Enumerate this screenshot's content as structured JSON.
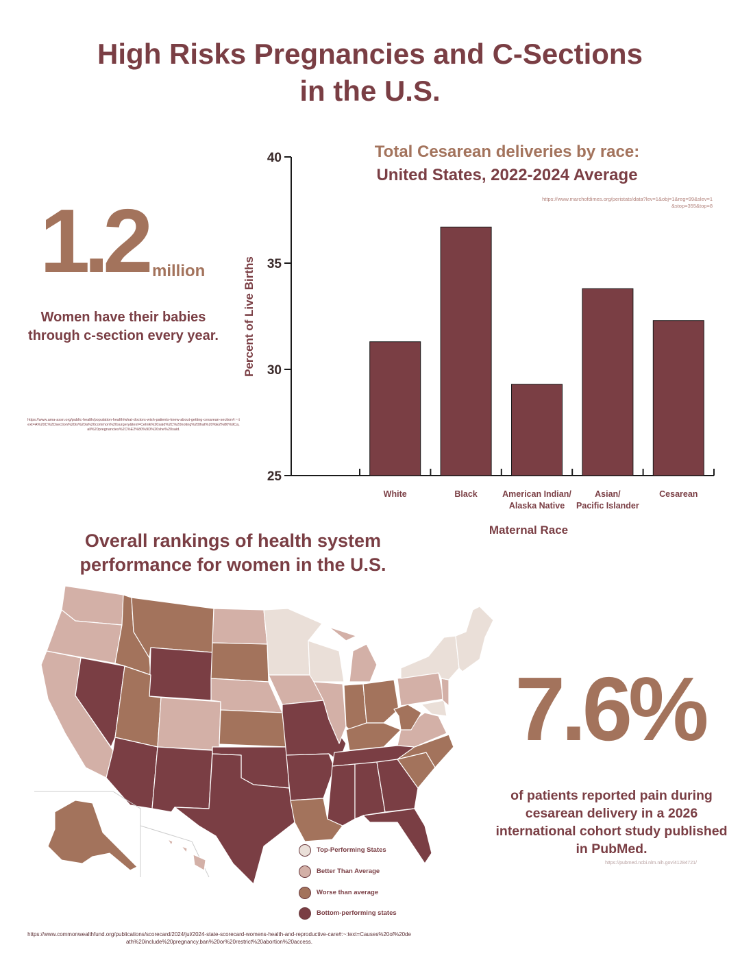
{
  "header": {
    "title_line1": "High Risks Pregnancies and C-Sections",
    "title_line2": "in the U.S."
  },
  "stat1": {
    "number": "1.2",
    "unit": "million",
    "text": "Women have their babies through c-section every year.",
    "source": "https://www.ama-assn.org/public-health/population-health/what-doctors-wish-patients-knew-about-getting-cesarean-section#:~:text=A%20C%2Dsection%20is%20a%20common%20surgery&text=Celnik%20said%2C%20noting%20that%20%E2%80%9Ca,all%20pregnancies%2C%E2%80%9D%20she%20said."
  },
  "chart_data": {
    "type": "bar",
    "title_line1": "Total Cesarean deliveries by race:",
    "title_line2": "United States, 2022-2024 Average",
    "source": "https://www.marchofdimes.org/peristats/data?lev=1&obj=1&reg=99&slev=1&stop=355&top=8",
    "categories": [
      "White",
      "Black",
      "American Indian/ Alaska Native",
      "Asian/ Pacific Islander",
      "Cesarean"
    ],
    "category_lines": [
      [
        "White"
      ],
      [
        "Black"
      ],
      [
        "American Indian/",
        "Alaska Native"
      ],
      [
        "Asian/",
        "Pacific Islander"
      ],
      [
        "Cesarean"
      ]
    ],
    "values": [
      31.3,
      36.7,
      29.3,
      33.8,
      32.3
    ],
    "xlabel": "Maternal Race",
    "ylabel": "Percent of Live Births",
    "ylim": [
      25,
      40
    ],
    "yticks": [
      25,
      30,
      35,
      40
    ],
    "grid": false,
    "bar_color": "#7a3e44"
  },
  "map": {
    "title_line1": "Overall rankings of health system",
    "title_line2": "performance for women in the U.S.",
    "colors": {
      "top": "#eadfd8",
      "better": "#d3b0a7",
      "worse": "#a3735c",
      "bottom": "#7a3e44"
    },
    "legend": [
      {
        "label": "Top-Performing States",
        "key": "top"
      },
      {
        "label": "Better Than Average",
        "key": "better"
      },
      {
        "label": "Worse than average",
        "key": "worse"
      },
      {
        "label": "Bottom-performing states",
        "key": "bottom"
      }
    ],
    "source": "https://www.commonwealthfund.org/publications/scorecard/2024/jul/2024-state-scorecard-womens-health-and-reproductive-care#:~:text=Causes%20of%20death%20include%20pregnancy,ban%20or%20restrict%20abortion%20access."
  },
  "stat2": {
    "number": "7.6%",
    "text": "of patients reported pain during cesarean delivery in a 2026 international cohort study published in PubMed.",
    "source": "https://pubmed.ncbi.nlm.nih.gov/41284721/"
  }
}
